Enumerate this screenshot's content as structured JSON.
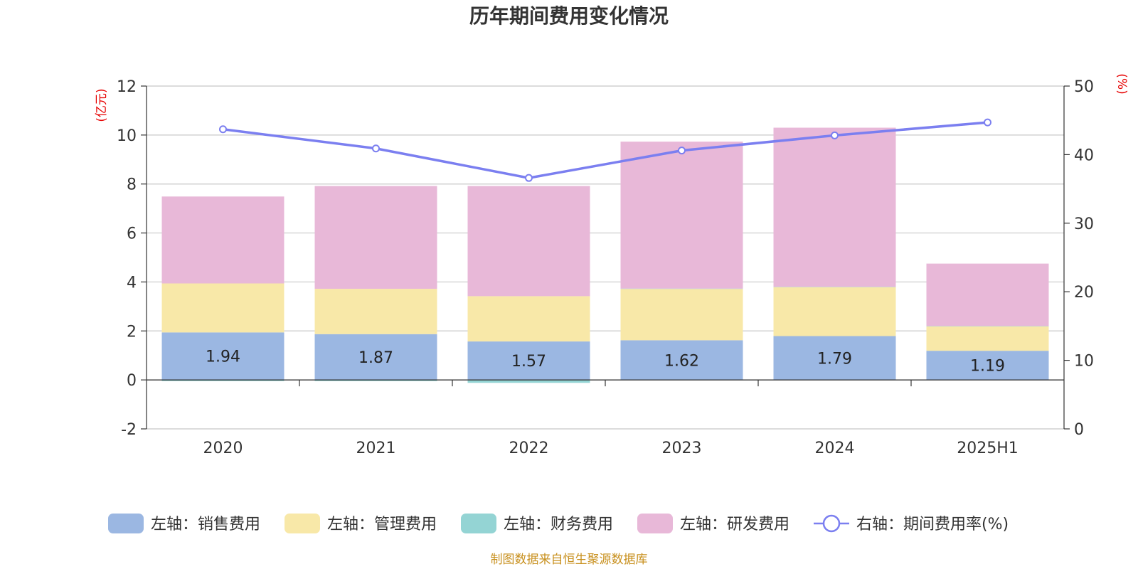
{
  "chart_data": {
    "type": "bar",
    "stacked": true,
    "title": "历年期间费用变化情况",
    "categories": [
      "2020",
      "2021",
      "2022",
      "2023",
      "2024",
      "2025H1"
    ],
    "left_axis": {
      "unit": "(亿元)",
      "range": [
        -2,
        12
      ],
      "ticks": [
        "12",
        "10",
        "8",
        "6",
        "4",
        "2",
        "0",
        "-2"
      ],
      "tick_values": [
        12,
        10,
        8,
        6,
        4,
        2,
        0,
        -2
      ]
    },
    "right_axis": {
      "unit": "(%)",
      "range": [
        0,
        50
      ],
      "ticks": [
        "50",
        "40",
        "30",
        "20",
        "10",
        "0"
      ],
      "tick_values": [
        50,
        40,
        30,
        20,
        10,
        0
      ]
    },
    "grid": true,
    "legend_position": "bottom",
    "series": [
      {
        "name": "左轴：销售费用",
        "color": "#9bb7e2",
        "axis": "left",
        "values": [
          1.94,
          1.87,
          1.57,
          1.62,
          1.79,
          1.19
        ],
        "labels": [
          "1.94",
          "1.87",
          "1.57",
          "1.62",
          "1.79",
          "1.19"
        ]
      },
      {
        "name": "左轴：管理费用",
        "color": "#f8e8a8",
        "axis": "left",
        "values": [
          2.0,
          1.85,
          1.85,
          2.1,
          2.0,
          1.0
        ]
      },
      {
        "name": "左轴：财务费用",
        "color": "#94d4d4",
        "axis": "left",
        "values": [
          -0.05,
          -0.05,
          -0.12,
          0.01,
          0.01,
          0.01
        ]
      },
      {
        "name": "左轴：研发费用",
        "color": "#e8b8d8",
        "axis": "left",
        "values": [
          3.55,
          4.2,
          4.5,
          6.0,
          6.5,
          2.55
        ]
      },
      {
        "name": "右轴：期间费用率(%)",
        "color": "#7b7ff0",
        "axis": "right",
        "type": "line",
        "values": [
          43.7,
          40.9,
          36.6,
          40.6,
          42.8,
          44.7
        ]
      }
    ]
  },
  "source": "制图数据来自恒生聚源数据库"
}
